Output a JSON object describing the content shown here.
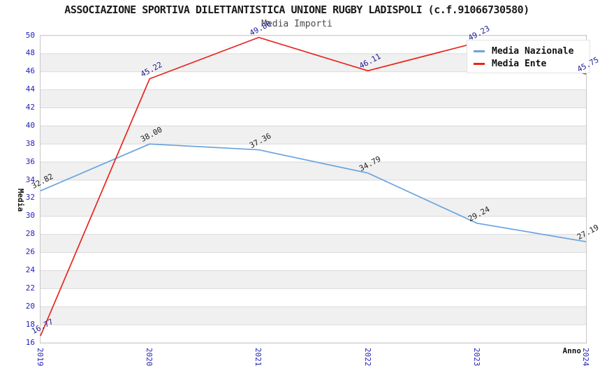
{
  "header": {
    "title": "ASSOCIAZIONE SPORTIVA DILETTANTISTICA UNIONE RUGBY LADISPOLI (c.f.91066730580)",
    "subtitle": "Media Importi"
  },
  "chart_data": {
    "type": "line",
    "title": "ASSOCIAZIONE SPORTIVA DILETTANTISTICA UNIONE RUGBY LADISPOLI (c.f.91066730580)",
    "subtitle": "Media Importi",
    "xlabel": "Anno",
    "ylabel": "Media",
    "categories": [
      "2019",
      "2020",
      "2021",
      "2022",
      "2023",
      "2024"
    ],
    "series": [
      {
        "name": "Media Nazionale",
        "color": "#6aa4df",
        "label_color": "#1f1f1f",
        "values": [
          32.82,
          38.0,
          37.36,
          34.79,
          29.24,
          27.19
        ]
      },
      {
        "name": "Media Ente",
        "color": "#e8251d",
        "label_color": "#202095",
        "values": [
          16.77,
          45.22,
          49.8,
          46.11,
          49.23,
          45.75
        ]
      }
    ],
    "ylim": [
      16,
      50
    ],
    "ytick_step": 2,
    "tick_label_color": "#2222bb",
    "band_color": "#f0f0f0",
    "gridline_color": "#dadada",
    "grid": "horizontal-alternating-bands",
    "legend_position": "top-right",
    "data_labels": "values shown rotated at each point, 2 decimals"
  }
}
